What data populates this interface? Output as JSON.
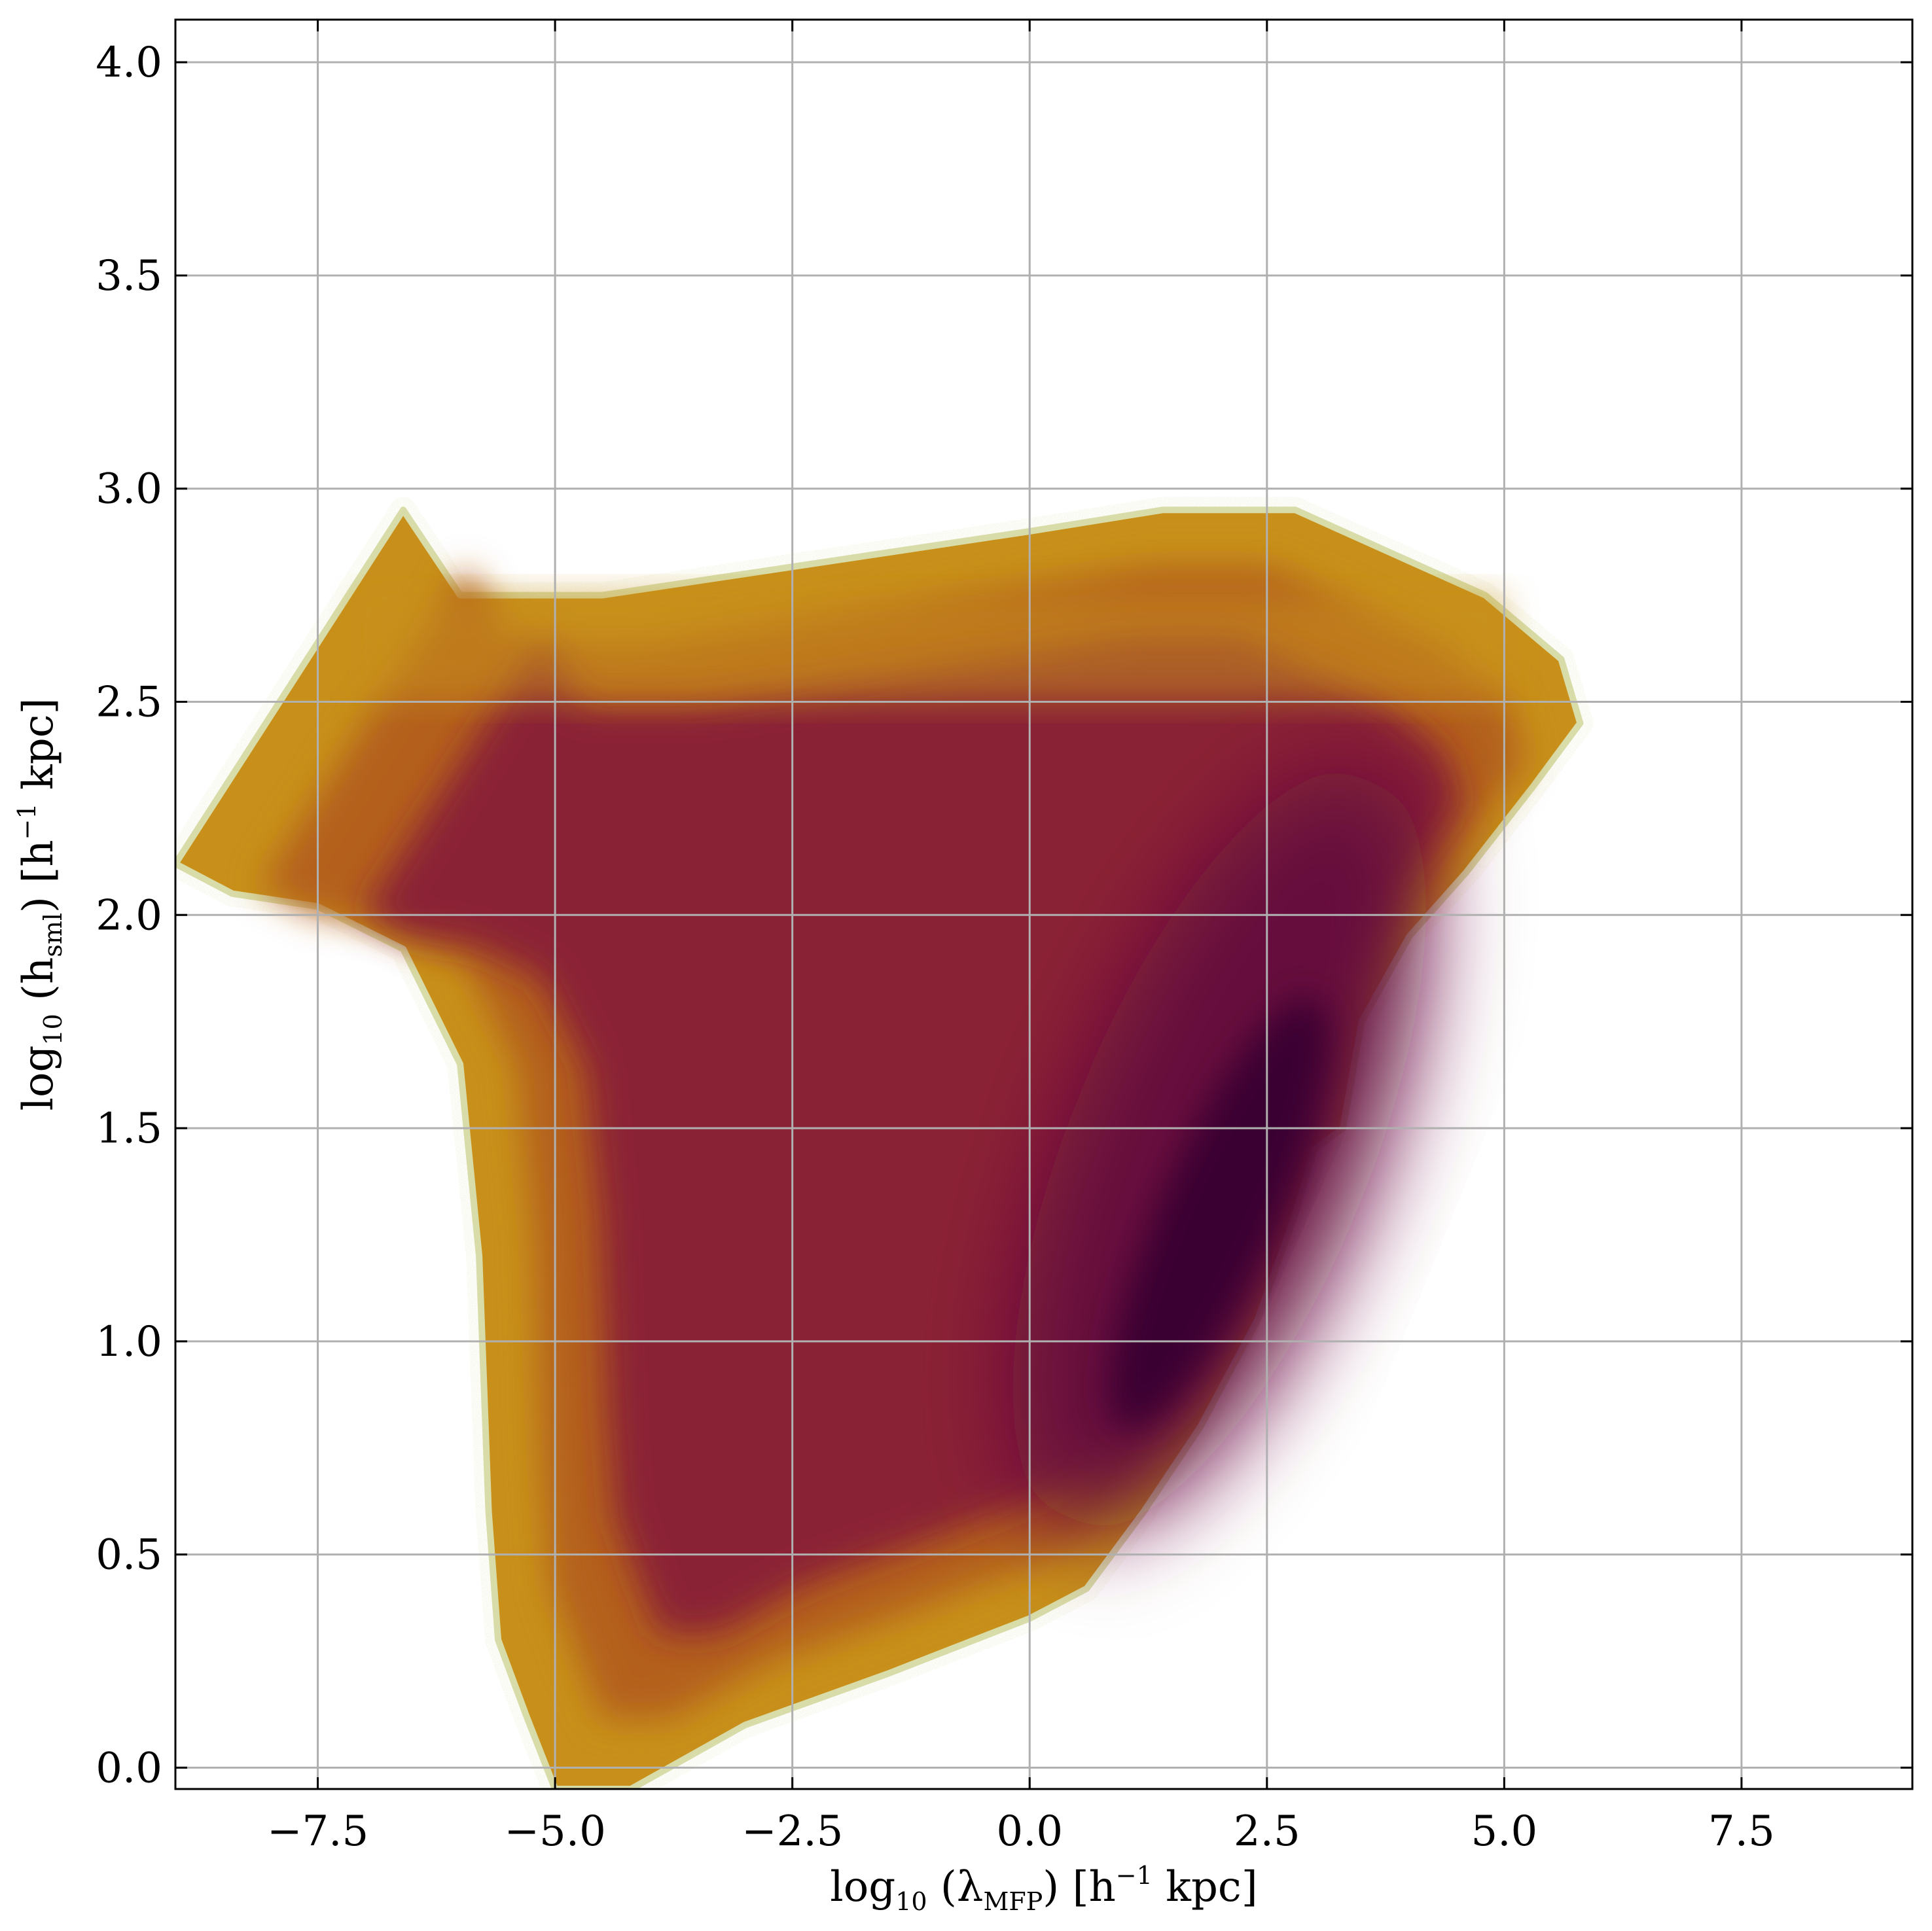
{
  "chart_data": {
    "type": "heatmap",
    "title": "",
    "xlabel": {
      "prefix": "log",
      "prefix_sub": "10",
      "open": " (λ",
      "var_sub": "MFP",
      "close": ") [h",
      "unit_sup": "−1",
      "unit_tail": " kpc]"
    },
    "ylabel": {
      "prefix": "log",
      "prefix_sub": "10",
      "open": " (h",
      "var_sub": "sml",
      "close": ") [h",
      "unit_sup": "−1",
      "unit_tail": " kpc]"
    },
    "xlim": [
      -9.0,
      9.3
    ],
    "ylim": [
      -0.05,
      4.1
    ],
    "xticks": [
      -7.5,
      -5.0,
      -2.5,
      0.0,
      2.5,
      5.0,
      7.5
    ],
    "xtick_labels": [
      "−7.5",
      "−5.0",
      "−2.5",
      "0.0",
      "2.5",
      "5.0",
      "7.5"
    ],
    "yticks": [
      0.0,
      0.5,
      1.0,
      1.5,
      2.0,
      2.5,
      3.0,
      3.5,
      4.0
    ],
    "ytick_labels": [
      "0.0",
      "0.5",
      "1.0",
      "1.5",
      "2.0",
      "2.5",
      "3.0",
      "3.5",
      "4.0"
    ],
    "grid": true,
    "colormap": [
      "#d8dca8",
      "#c8901a",
      "#b4601e",
      "#8a2434",
      "#66103e",
      "#3a0630"
    ],
    "density_envelope": [
      [
        -9.0,
        2.12
      ],
      [
        -8.4,
        2.05
      ],
      [
        -7.5,
        2.02
      ],
      [
        -6.6,
        1.92
      ],
      [
        -6.0,
        1.65
      ],
      [
        -5.8,
        1.2
      ],
      [
        -5.7,
        0.6
      ],
      [
        -5.6,
        0.3
      ],
      [
        -5.3,
        0.12
      ],
      [
        -5.0,
        -0.05
      ],
      [
        -4.2,
        -0.05
      ],
      [
        -3.0,
        0.1
      ],
      [
        -1.5,
        0.22
      ],
      [
        0.0,
        0.35
      ],
      [
        0.6,
        0.42
      ],
      [
        1.2,
        0.6
      ],
      [
        1.8,
        0.8
      ],
      [
        2.4,
        1.05
      ],
      [
        2.8,
        1.3
      ],
      [
        3.0,
        1.45
      ],
      [
        3.3,
        1.5
      ],
      [
        3.5,
        1.75
      ],
      [
        4.0,
        1.95
      ],
      [
        4.6,
        2.1
      ],
      [
        5.3,
        2.3
      ],
      [
        5.8,
        2.45
      ],
      [
        5.6,
        2.6
      ],
      [
        4.8,
        2.75
      ],
      [
        3.8,
        2.85
      ],
      [
        2.8,
        2.95
      ],
      [
        1.4,
        2.95
      ],
      [
        0.0,
        2.9
      ],
      [
        -1.5,
        2.85
      ],
      [
        -3.0,
        2.8
      ],
      [
        -4.5,
        2.75
      ],
      [
        -6.0,
        2.75
      ],
      [
        -6.6,
        2.95
      ],
      [
        -9.0,
        2.12
      ]
    ],
    "density_peak": [
      2.0,
      1.45
    ]
  }
}
